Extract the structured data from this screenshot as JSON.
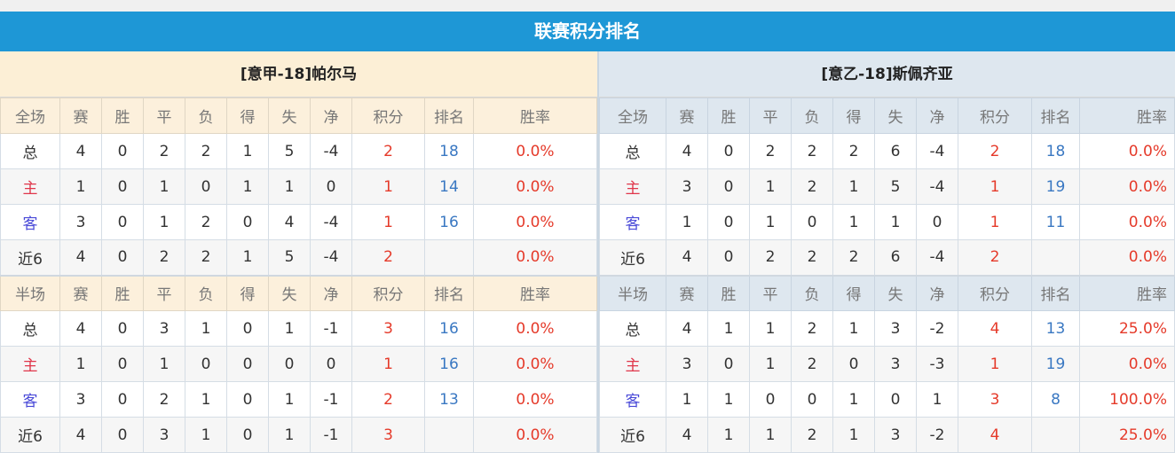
{
  "title": "联赛积分排名",
  "headers_full": [
    "全场",
    "赛",
    "胜",
    "平",
    "负",
    "得",
    "失",
    "净",
    "积分",
    "排名",
    "胜率"
  ],
  "headers_half": [
    "半场",
    "赛",
    "胜",
    "平",
    "负",
    "得",
    "失",
    "净",
    "积分",
    "排名",
    "胜率"
  ],
  "colors": {
    "banner": "#1e97d6",
    "points": "#e53a2a",
    "rank": "#3a78c2",
    "home": "#e0364a",
    "away": "#4a4ad8"
  },
  "teams": [
    {
      "name": "[意甲-18]帕尔马",
      "full": [
        [
          "总",
          "4",
          "0",
          "2",
          "2",
          "1",
          "5",
          "-4",
          "2",
          "18",
          "0.0%"
        ],
        [
          "主",
          "1",
          "0",
          "1",
          "0",
          "1",
          "1",
          "0",
          "1",
          "14",
          "0.0%"
        ],
        [
          "客",
          "3",
          "0",
          "1",
          "2",
          "0",
          "4",
          "-4",
          "1",
          "16",
          "0.0%"
        ],
        [
          "近6",
          "4",
          "0",
          "2",
          "2",
          "1",
          "5",
          "-4",
          "2",
          "",
          "0.0%"
        ]
      ],
      "half": [
        [
          "总",
          "4",
          "0",
          "3",
          "1",
          "0",
          "1",
          "-1",
          "3",
          "16",
          "0.0%"
        ],
        [
          "主",
          "1",
          "0",
          "1",
          "0",
          "0",
          "0",
          "0",
          "1",
          "16",
          "0.0%"
        ],
        [
          "客",
          "3",
          "0",
          "2",
          "1",
          "0",
          "1",
          "-1",
          "2",
          "13",
          "0.0%"
        ],
        [
          "近6",
          "4",
          "0",
          "3",
          "1",
          "0",
          "1",
          "-1",
          "3",
          "",
          "0.0%"
        ]
      ]
    },
    {
      "name": "[意乙-18]斯佩齐亚",
      "full": [
        [
          "总",
          "4",
          "0",
          "2",
          "2",
          "2",
          "6",
          "-4",
          "2",
          "18",
          "0.0%"
        ],
        [
          "主",
          "3",
          "0",
          "1",
          "2",
          "1",
          "5",
          "-4",
          "1",
          "19",
          "0.0%"
        ],
        [
          "客",
          "1",
          "0",
          "1",
          "0",
          "1",
          "1",
          "0",
          "1",
          "11",
          "0.0%"
        ],
        [
          "近6",
          "4",
          "0",
          "2",
          "2",
          "2",
          "6",
          "-4",
          "2",
          "",
          "0.0%"
        ]
      ],
      "half": [
        [
          "总",
          "4",
          "1",
          "1",
          "2",
          "1",
          "3",
          "-2",
          "4",
          "13",
          "25.0%"
        ],
        [
          "主",
          "3",
          "0",
          "1",
          "2",
          "0",
          "3",
          "-3",
          "1",
          "19",
          "0.0%"
        ],
        [
          "客",
          "1",
          "1",
          "0",
          "0",
          "1",
          "0",
          "1",
          "3",
          "8",
          "100.0%"
        ],
        [
          "近6",
          "4",
          "1",
          "1",
          "2",
          "1",
          "3",
          "-2",
          "4",
          "",
          "25.0%"
        ]
      ]
    }
  ]
}
